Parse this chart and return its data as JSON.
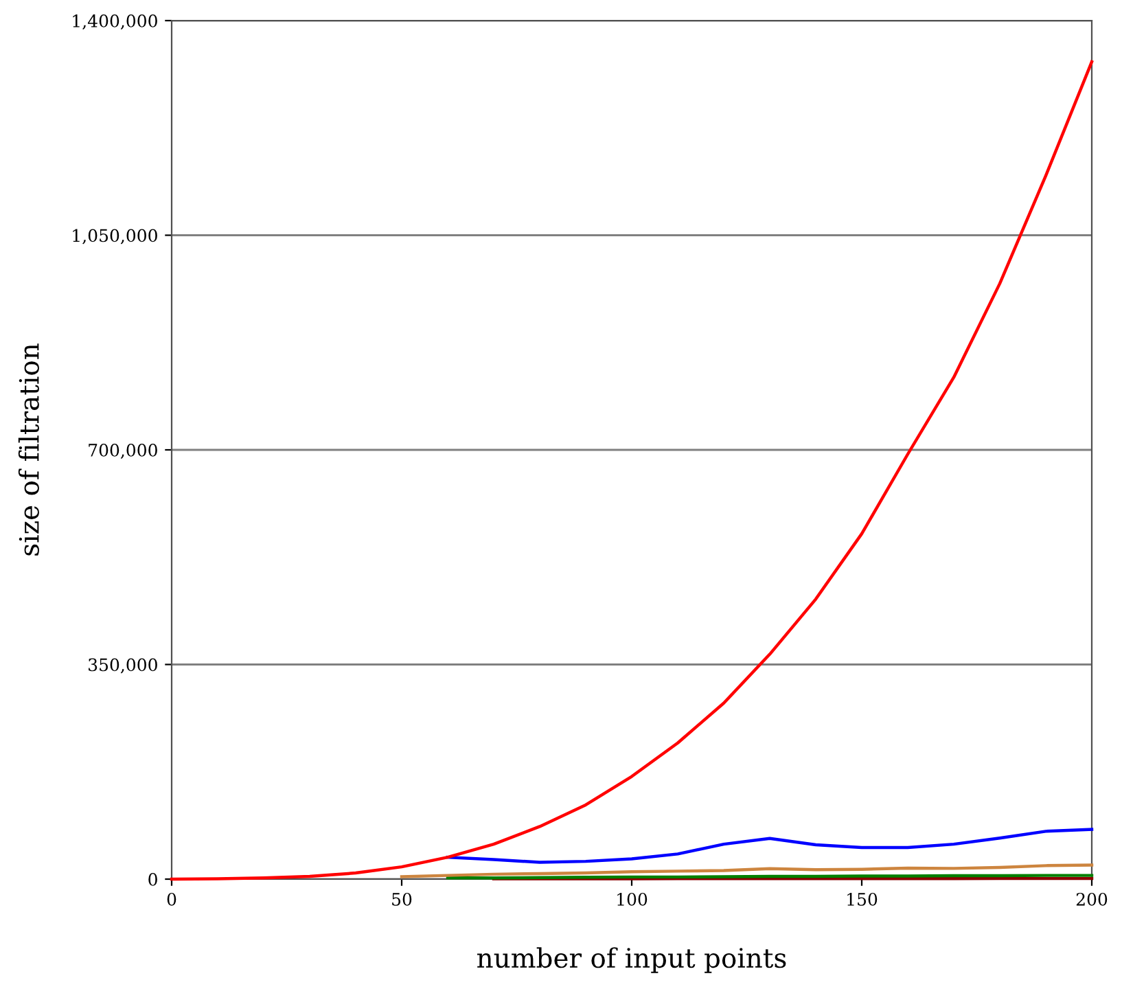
{
  "chart_data": {
    "type": "line",
    "xlabel": "number of input points",
    "ylabel": "size of filtration",
    "x": [
      0,
      10,
      20,
      30,
      40,
      50,
      60,
      70,
      80,
      90,
      100,
      110,
      120,
      130,
      140,
      150,
      160,
      170,
      180,
      190,
      200
    ],
    "xlim": [
      0,
      200
    ],
    "xticks": [
      0,
      50,
      100,
      150,
      200
    ],
    "ylim": [
      0,
      1400000
    ],
    "yticks": [
      {
        "value": 0,
        "label": "0"
      },
      {
        "value": 350000,
        "label": "350,000"
      },
      {
        "value": 700000,
        "label": "700,000"
      },
      {
        "value": 1050000,
        "label": "1,050,000"
      },
      {
        "value": 1400000,
        "label": "1,400,000"
      }
    ],
    "grid": "y",
    "marker": "none",
    "line_style": "solid",
    "series": [
      {
        "color": "#8b0000",
        "values": [
          null,
          null,
          null,
          null,
          null,
          null,
          null,
          500,
          500,
          600,
          600,
          700,
          700,
          800,
          800,
          800,
          900,
          900,
          1000,
          1000,
          1000
        ]
      },
      {
        "color": "#008000",
        "values": [
          null,
          null,
          null,
          null,
          null,
          null,
          2000,
          2000,
          2500,
          3000,
          3500,
          3500,
          4000,
          4500,
          4500,
          5000,
          5000,
          5500,
          5500,
          6000,
          6000
        ]
      },
      {
        "color": "#cd853f",
        "values": [
          null,
          null,
          null,
          null,
          null,
          4000,
          6000,
          8000,
          9000,
          10000,
          12000,
          13000,
          14000,
          17000,
          15500,
          16000,
          18000,
          17500,
          19000,
          22000,
          23000
        ]
      },
      {
        "color": "#0000ff",
        "values": [
          null,
          null,
          null,
          null,
          null,
          null,
          35700,
          32000,
          27400,
          29000,
          33000,
          41000,
          57000,
          66300,
          56000,
          51500,
          51500,
          57000,
          67000,
          78000,
          81000
        ]
      },
      {
        "color": "#ff0000",
        "values": [
          0,
          500,
          2000,
          4500,
          10000,
          20000,
          35700,
          57000,
          85800,
          121000,
          167400,
          222100,
          287000,
          366700,
          456600,
          563200,
          693000,
          818200,
          971200,
          1147000,
          1332800
        ]
      }
    ]
  }
}
